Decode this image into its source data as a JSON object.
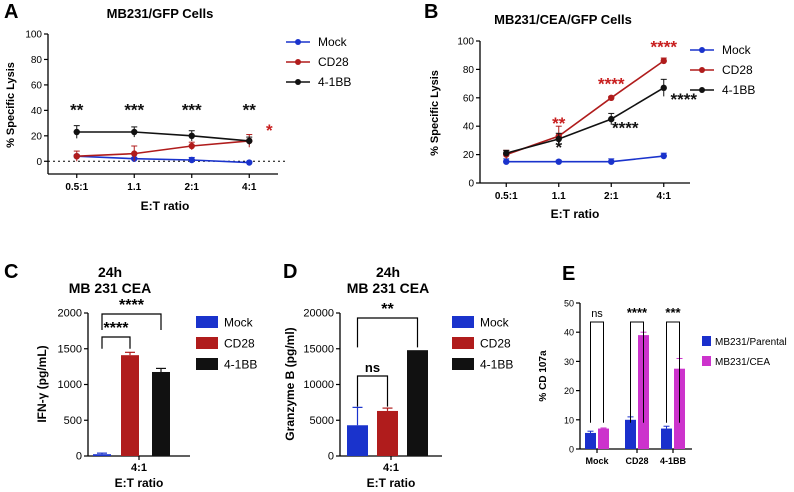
{
  "colors": {
    "mock": "#1a33cc",
    "cd28": "#b01c1c",
    "bb": "#111111",
    "parental": "#1a2fcc",
    "cea": "#cc33cc",
    "sig_black": "#111111",
    "sig_red": "#c81e1e"
  },
  "panels": {
    "A": {
      "letter": "A",
      "title": "MB231/GFP Cells",
      "ylabel": "% Specific Lysis",
      "xlabel": "E:T ratio"
    },
    "B": {
      "letter": "B",
      "title": "MB231/CEA/GFP Cells",
      "ylabel": "% Specific Lysis",
      "xlabel": "E:T ratio"
    },
    "C": {
      "letter": "C",
      "title_line1": "24h",
      "title_line2": "MB 231 CEA",
      "ylabel": "IFN-γ (pg/mL)",
      "xtick": "4:1",
      "xlabel": "E:T ratio"
    },
    "D": {
      "letter": "D",
      "title_line1": "24h",
      "title_line2": "MB 231 CEA",
      "ylabel": "Granzyme B (pg/ml)",
      "xtick": "4:1",
      "xlabel": "E:T ratio"
    },
    "E": {
      "letter": "E",
      "ylabel": "% CD 107a"
    }
  },
  "chart_data": [
    {
      "id": "A",
      "type": "line",
      "title": "MB231/GFP Cells",
      "xlabel": "E:T ratio",
      "ylabel": "% Specific Lysis",
      "categories": [
        "0.5:1",
        "1.1",
        "2:1",
        "4:1"
      ],
      "ylim": [
        -10,
        100
      ],
      "yticks": [
        0,
        20,
        40,
        60,
        80,
        100
      ],
      "zero_line": "dotted",
      "legend": [
        "Mock",
        "CD28",
        "4-1BB"
      ],
      "series": [
        {
          "name": "Mock",
          "values": [
            4,
            2,
            1,
            -1
          ],
          "errors": [
            1,
            1,
            2,
            0.5
          ]
        },
        {
          "name": "CD28",
          "values": [
            4,
            6,
            12,
            16
          ],
          "errors": [
            4,
            6,
            3,
            5
          ]
        },
        {
          "name": "4-1BB",
          "values": [
            23,
            23,
            20,
            16
          ],
          "errors": [
            5,
            4,
            4,
            3
          ]
        }
      ],
      "annotations": [
        {
          "category": "0.5:1",
          "text": "**",
          "color": "black"
        },
        {
          "category": "1.1",
          "text": "***",
          "color": "black"
        },
        {
          "category": "2:1",
          "text": "***",
          "color": "black"
        },
        {
          "category": "4:1",
          "text": "**",
          "color": "black"
        },
        {
          "category": "4:1",
          "text": "*",
          "color": "red"
        }
      ]
    },
    {
      "id": "B",
      "type": "line",
      "title": "MB231/CEA/GFP Cells",
      "xlabel": "E:T ratio",
      "ylabel": "% Specific Lysis",
      "categories": [
        "0.5:1",
        "1.1",
        "2:1",
        "4:1"
      ],
      "ylim": [
        0,
        100
      ],
      "yticks": [
        0,
        20,
        40,
        60,
        80,
        100
      ],
      "legend": [
        "Mock",
        "CD28",
        "4-1BB"
      ],
      "series": [
        {
          "name": "Mock",
          "values": [
            15,
            15,
            15,
            19
          ],
          "errors": [
            2,
            1,
            2,
            2
          ]
        },
        {
          "name": "CD28",
          "values": [
            20,
            33,
            60,
            86
          ],
          "errors": [
            3,
            7,
            1,
            2
          ]
        },
        {
          "name": "4-1BB",
          "values": [
            21,
            31,
            45,
            67
          ],
          "errors": [
            2,
            4,
            4,
            6
          ]
        }
      ],
      "annotations": [
        {
          "category": "1.1",
          "text": "**",
          "color": "red"
        },
        {
          "category": "1.1",
          "text": "*",
          "color": "black"
        },
        {
          "category": "2:1",
          "text": "****",
          "color": "red"
        },
        {
          "category": "2:1",
          "text": "****",
          "color": "black"
        },
        {
          "category": "4:1",
          "text": "****",
          "color": "red"
        },
        {
          "category": "4:1",
          "text": "****",
          "color": "black"
        }
      ]
    },
    {
      "id": "C",
      "type": "bar",
      "title": "24h MB 231 CEA",
      "xlabel": "E:T ratio",
      "ylabel": "IFN-γ (pg/mL)",
      "categories": [
        "4:1"
      ],
      "ylim": [
        0,
        2000
      ],
      "yticks": [
        0,
        500,
        1000,
        1500,
        2000
      ],
      "legend": [
        "Mock",
        "CD28",
        "4-1BB"
      ],
      "series": [
        {
          "name": "Mock",
          "values": [
            25
          ],
          "errors": [
            15
          ]
        },
        {
          "name": "CD28",
          "values": [
            1410
          ],
          "errors": [
            40
          ]
        },
        {
          "name": "4-1BB",
          "values": [
            1175
          ],
          "errors": [
            50
          ]
        }
      ],
      "comparisons": [
        {
          "from": "Mock",
          "to": "CD28",
          "text": "****"
        },
        {
          "from": "Mock",
          "to": "4-1BB",
          "text": "****"
        }
      ]
    },
    {
      "id": "D",
      "type": "bar",
      "title": "24h MB 231 CEA",
      "xlabel": "E:T ratio",
      "ylabel": "Granzyme B (pg/ml)",
      "categories": [
        "4:1"
      ],
      "ylim": [
        0,
        20000
      ],
      "yticks": [
        0,
        5000,
        10000,
        15000,
        20000
      ],
      "legend": [
        "Mock",
        "CD28",
        "4-1BB"
      ],
      "series": [
        {
          "name": "Mock",
          "values": [
            4300
          ],
          "errors": [
            2500
          ]
        },
        {
          "name": "CD28",
          "values": [
            6300
          ],
          "errors": [
            400
          ]
        },
        {
          "name": "4-1BB",
          "values": [
            14800
          ],
          "errors": [
            0
          ]
        }
      ],
      "comparisons": [
        {
          "from": "Mock",
          "to": "CD28",
          "text": "ns"
        },
        {
          "from": "Mock",
          "to": "4-1BB",
          "text": "**"
        }
      ]
    },
    {
      "id": "E",
      "type": "bar",
      "title": "",
      "xlabel": "",
      "ylabel": "% CD 107a",
      "categories": [
        "Mock",
        "CD28",
        "4-1BB"
      ],
      "ylim": [
        0,
        50
      ],
      "yticks": [
        0,
        10,
        20,
        30,
        40,
        50
      ],
      "legend": [
        "MB231/Parental",
        "MB231/CEA"
      ],
      "series": [
        {
          "name": "MB231/Parental",
          "values": [
            5.5,
            10,
            7
          ],
          "errors": [
            0.6,
            1,
            0.8
          ]
        },
        {
          "name": "MB231/CEA",
          "values": [
            7,
            39,
            27.5
          ],
          "errors": [
            0.2,
            1,
            3.5
          ]
        }
      ],
      "comparisons": [
        {
          "category": "Mock",
          "text": "ns"
        },
        {
          "category": "CD28",
          "text": "****"
        },
        {
          "category": "4-1BB",
          "text": "***"
        }
      ]
    }
  ]
}
